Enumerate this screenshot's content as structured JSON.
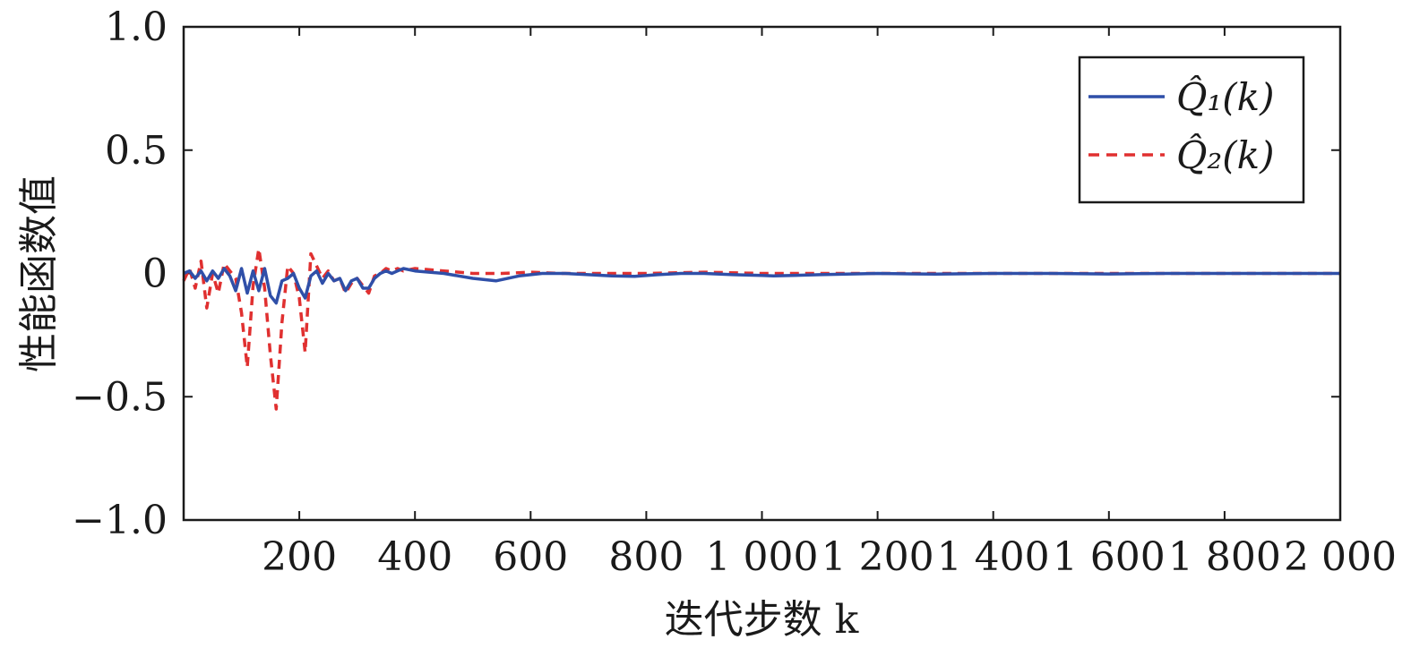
{
  "chart_data": {
    "type": "line",
    "title": "",
    "xlabel": "迭代步数 k",
    "ylabel": "性能函数值",
    "xlim": [
      0,
      2000
    ],
    "ylim": [
      -1.0,
      1.0
    ],
    "x_ticks": [
      {
        "value": 200,
        "label": "200"
      },
      {
        "value": 400,
        "label": "400"
      },
      {
        "value": 600,
        "label": "600"
      },
      {
        "value": 800,
        "label": "800"
      },
      {
        "value": 1000,
        "label": "1 000"
      },
      {
        "value": 1200,
        "label": "1 200"
      },
      {
        "value": 1400,
        "label": "1 400"
      },
      {
        "value": 1600,
        "label": "1 600"
      },
      {
        "value": 1800,
        "label": "1 800"
      },
      {
        "value": 2000,
        "label": "2 000"
      }
    ],
    "y_ticks": [
      {
        "value": 1.0,
        "label": "1.0"
      },
      {
        "value": 0.5,
        "label": "0.5"
      },
      {
        "value": 0,
        "label": "0"
      },
      {
        "value": -0.5,
        "label": "−0.5"
      },
      {
        "value": -1.0,
        "label": "−1.0"
      }
    ],
    "grid": false,
    "legend_position": "top-right",
    "series": [
      {
        "name": "Q̂₁(k)",
        "color": "#2f4fa8",
        "dash": "solid",
        "x": [
          0,
          10,
          20,
          30,
          40,
          50,
          60,
          70,
          80,
          90,
          100,
          110,
          120,
          130,
          140,
          150,
          160,
          170,
          180,
          190,
          200,
          210,
          220,
          230,
          240,
          250,
          260,
          270,
          280,
          290,
          300,
          310,
          320,
          330,
          340,
          350,
          360,
          370,
          380,
          400,
          450,
          500,
          540,
          580,
          620,
          660,
          700,
          740,
          780,
          820,
          860,
          900,
          950,
          1000,
          1020,
          1100,
          1200,
          1300,
          1400,
          1500,
          1600,
          1700,
          1800,
          1900,
          2000
        ],
        "y": [
          0,
          0.01,
          -0.02,
          0.01,
          -0.03,
          0.01,
          -0.02,
          0.02,
          -0.01,
          -0.07,
          0.02,
          -0.08,
          0.01,
          -0.07,
          0.02,
          -0.09,
          -0.12,
          -0.03,
          -0.02,
          0.0,
          -0.06,
          -0.1,
          -0.01,
          0.01,
          -0.04,
          0.0,
          -0.03,
          -0.02,
          -0.07,
          -0.03,
          -0.02,
          -0.06,
          -0.06,
          -0.02,
          0.0,
          0.01,
          0.0,
          0.01,
          0.02,
          0.01,
          0.0,
          -0.02,
          -0.03,
          -0.01,
          0.0,
          0.0,
          -0.005,
          -0.01,
          -0.012,
          -0.005,
          0.0,
          0.0,
          -0.005,
          -0.008,
          -0.01,
          -0.005,
          0.0,
          -0.003,
          0.0,
          0.0,
          -0.002,
          0.0,
          0.0,
          0.0,
          0.0
        ]
      },
      {
        "name": "Q̂₂(k)",
        "color": "#e03030",
        "dash": "dashed",
        "x": [
          0,
          10,
          20,
          30,
          40,
          50,
          60,
          70,
          80,
          90,
          100,
          110,
          120,
          130,
          140,
          150,
          160,
          170,
          180,
          190,
          200,
          210,
          220,
          230,
          240,
          250,
          260,
          270,
          280,
          290,
          300,
          310,
          320,
          330,
          340,
          350,
          360,
          370,
          380,
          400,
          450,
          500,
          550,
          600,
          650,
          700,
          800,
          900,
          1000,
          1100,
          1200,
          1300,
          1400,
          1500,
          1600,
          1700,
          1800,
          1900,
          2000
        ],
        "y": [
          -0.03,
          0.02,
          -0.06,
          0.05,
          -0.14,
          0.0,
          -0.08,
          0.04,
          0.01,
          -0.02,
          -0.16,
          -0.38,
          -0.05,
          0.1,
          -0.06,
          -0.33,
          -0.55,
          -0.2,
          0.03,
          0.0,
          -0.1,
          -0.32,
          0.08,
          0.03,
          -0.02,
          0.01,
          -0.03,
          -0.02,
          -0.08,
          -0.04,
          -0.02,
          -0.05,
          -0.08,
          -0.01,
          0.0,
          0.02,
          0.01,
          0.02,
          0.01,
          0.02,
          0.01,
          0.0,
          0.0,
          0.005,
          0.0,
          0.0,
          0.0,
          0.005,
          0.0,
          0.0,
          0.0,
          0.0,
          0.0,
          0.0,
          0.0,
          0.0,
          0.0,
          0.0,
          0.0
        ]
      }
    ]
  }
}
